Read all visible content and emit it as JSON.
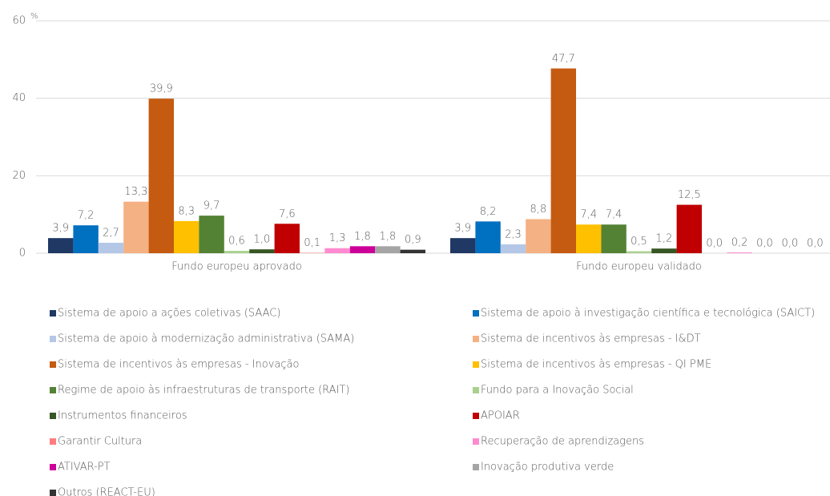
{
  "chart_data": {
    "type": "bar",
    "y_axis_label": "%",
    "categories": [
      "Fundo europeu aprovado",
      "Fundo europeu validado"
    ],
    "ylim": [
      0,
      60
    ],
    "yticks": [
      0,
      20,
      40,
      60
    ],
    "grid": true,
    "legend": "bottom",
    "series": [
      {
        "name": "Sistema de apoio a ações coletivas (SAAC)",
        "color": "#203864",
        "values": [
          3.9,
          3.9
        ],
        "value_labels": [
          "3,9",
          "3,9"
        ]
      },
      {
        "name": "Sistema de apoio à investigação científica e tecnológica (SAICT)",
        "color": "#0070c0",
        "values": [
          7.2,
          8.2
        ],
        "value_labels": [
          "7,2",
          "8,2"
        ]
      },
      {
        "name": "Sistema de apoio à modernização administrativa (SAMA)",
        "color": "#b4c7e7",
        "values": [
          2.7,
          2.3
        ],
        "value_labels": [
          "2,7",
          "2,3"
        ]
      },
      {
        "name": "Sistema de incentivos às empresas - I&DT",
        "color": "#f4b183",
        "values": [
          13.3,
          8.8
        ],
        "value_labels": [
          "13,3",
          "8,8"
        ]
      },
      {
        "name": "Sistema de incentivos às empresas - Inovação",
        "color": "#c55a11",
        "values": [
          39.9,
          47.7
        ],
        "value_labels": [
          "39,9",
          "47,7"
        ]
      },
      {
        "name": "Sistema de incentivos às empresas - QI PME",
        "color": "#ffc000",
        "values": [
          8.3,
          7.4
        ],
        "value_labels": [
          "8,3",
          "7,4"
        ]
      },
      {
        "name": "Regime de apoio às infraestruturas de transporte (RAIT)",
        "color": "#548235",
        "values": [
          9.7,
          7.4
        ],
        "value_labels": [
          "9,7",
          "7,4"
        ]
      },
      {
        "name": "Fundo para a Inovação Social",
        "color": "#a9d18e",
        "values": [
          0.6,
          0.5
        ],
        "value_labels": [
          "0,6",
          "0,5"
        ]
      },
      {
        "name": "Instrumentos financeiros",
        "color": "#375623",
        "values": [
          1.0,
          1.2
        ],
        "value_labels": [
          "1,0",
          "1,2"
        ]
      },
      {
        "name": "APOIAR",
        "color": "#c00000",
        "values": [
          7.6,
          12.5
        ],
        "value_labels": [
          "7,6",
          "12,5"
        ]
      },
      {
        "name": "Garantir Cultura",
        "color": "#ff7c80",
        "values": [
          0.1,
          0.0
        ],
        "value_labels": [
          "0,1",
          "0,0"
        ]
      },
      {
        "name": "Recuperação de aprendizagens",
        "color": "#ff8ad0",
        "values": [
          1.3,
          0.2
        ],
        "value_labels": [
          "1,3",
          "0,2"
        ]
      },
      {
        "name": "ATIVAR-PT",
        "color": "#cc0099",
        "values": [
          1.8,
          0.0
        ],
        "value_labels": [
          "1,8",
          "0,0"
        ]
      },
      {
        "name": "Inovação produtiva verde",
        "color": "#a5a5a5",
        "values": [
          1.8,
          0.0
        ],
        "value_labels": [
          "1,8",
          "0,0"
        ]
      },
      {
        "name": "Outros (REACT-EU)",
        "color": "#333333",
        "values": [
          0.9,
          0.0
        ],
        "value_labels": [
          "0,9",
          "0,0"
        ]
      }
    ]
  }
}
